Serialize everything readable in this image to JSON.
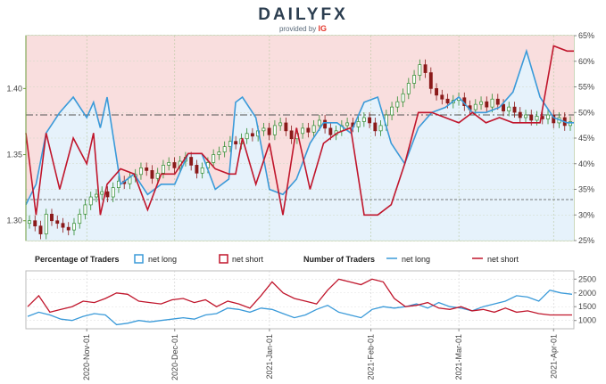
{
  "brand": {
    "name": "DAILYFX",
    "provided_by": "provided by",
    "partner": "IG"
  },
  "legend": {
    "pct_title": "Percentage of Traders",
    "num_title": "Number of Traders",
    "net_long": "net long",
    "net_short": "net short"
  },
  "colors": {
    "long": "#3a9ad9",
    "short": "#c0162c",
    "up_candle": "#2e8b2e",
    "down_candle": "#8b1a1a",
    "long_fill": "#e6f2fb",
    "short_fill": "#f9dede"
  },
  "chart_data": [
    {
      "type": "line",
      "title": "",
      "price_axis": {
        "ticks": [
          "1.30",
          "1.35",
          "1.40"
        ],
        "ylim": [
          1.285,
          1.44
        ]
      },
      "pct_axis": {
        "ticks": [
          "25%",
          "30%",
          "35%",
          "40%",
          "45%",
          "50%",
          "55%",
          "60%",
          "65%"
        ],
        "ylim": [
          25,
          65
        ]
      },
      "reference_lines": {
        "price_level": 1.38,
        "pct_level": 33
      },
      "x_ticks": [
        "2020-Nov-01",
        "2020-Dec-01",
        "2021-Jan-01",
        "2021-Feb-01",
        "2021-Mar-01",
        "2021-Apr-01"
      ],
      "series": [
        {
          "name": "net long",
          "x": [
            0,
            3,
            6,
            10,
            14,
            18,
            20,
            22,
            24,
            28,
            32,
            36,
            40,
            44,
            48,
            52,
            56,
            60,
            62,
            64,
            68,
            72,
            76,
            80,
            84,
            88,
            92,
            96,
            100,
            104,
            108,
            112,
            116,
            120,
            124,
            128,
            132,
            136,
            140,
            144,
            148,
            152,
            156,
            160,
            162
          ],
          "values": [
            32,
            36,
            46,
            50,
            53,
            49,
            52,
            47,
            53,
            36,
            38,
            34,
            36,
            36,
            42,
            42,
            35,
            37,
            52,
            53,
            49,
            35,
            34,
            37,
            44,
            48,
            48,
            46,
            52,
            53,
            44,
            40,
            47,
            50,
            51,
            53,
            50,
            50,
            51,
            54,
            62,
            53,
            49,
            48,
            48
          ]
        },
        {
          "name": "net short",
          "x": [
            0,
            3,
            6,
            10,
            14,
            18,
            20,
            22,
            24,
            28,
            32,
            36,
            40,
            44,
            48,
            52,
            56,
            60,
            62,
            64,
            68,
            72,
            76,
            80,
            84,
            88,
            92,
            96,
            100,
            104,
            108,
            112,
            116,
            120,
            124,
            128,
            132,
            136,
            140,
            144,
            148,
            152,
            156,
            160,
            162
          ],
          "values": [
            46,
            30,
            46,
            35,
            45,
            40,
            46,
            30,
            36,
            39,
            38,
            31,
            38,
            38,
            42,
            42,
            39,
            38,
            38,
            45,
            36,
            44,
            30,
            47,
            35,
            44,
            46,
            47,
            30,
            30,
            32,
            40,
            50,
            50,
            49,
            48,
            50,
            48,
            49,
            48,
            48,
            48,
            63,
            62,
            62
          ]
        }
      ],
      "candles": [
        1.3,
        1.296,
        1.29,
        1.305,
        1.3,
        1.298,
        1.295,
        1.293,
        1.298,
        1.305,
        1.312,
        1.318,
        1.32,
        1.322,
        1.318,
        1.325,
        1.33,
        1.328,
        1.333,
        1.335,
        1.34,
        1.338,
        1.332,
        1.336,
        1.342,
        1.344,
        1.34,
        1.345,
        1.348,
        1.342,
        1.336,
        1.34,
        1.344,
        1.35,
        1.352,
        1.356,
        1.36,
        1.358,
        1.362,
        1.366,
        1.364,
        1.368,
        1.37,
        1.365,
        1.372,
        1.374,
        1.368,
        1.362,
        1.366,
        1.37,
        1.367,
        1.372,
        1.376,
        1.37,
        1.365,
        1.368,
        1.372,
        1.374,
        1.371,
        1.375,
        1.378,
        1.374,
        1.368,
        1.372,
        1.38,
        1.386,
        1.39,
        1.396,
        1.404,
        1.41,
        1.418,
        1.412,
        1.4,
        1.395,
        1.392,
        1.389,
        1.391,
        1.393,
        1.387,
        1.384,
        1.388,
        1.39,
        1.386,
        1.392,
        1.388,
        1.383,
        1.386,
        1.382,
        1.378,
        1.38,
        1.376,
        1.379,
        1.377,
        1.38,
        1.374,
        1.378,
        1.372,
        1.375
      ]
    },
    {
      "type": "line",
      "title": "Number of Traders",
      "y_axis": {
        "ticks": [
          "1000",
          "1500",
          "2000",
          "2500"
        ],
        "ylim": [
          700,
          2800
        ]
      },
      "series": [
        {
          "name": "net long",
          "values": [
            1150,
            1300,
            1200,
            1050,
            1000,
            1150,
            1250,
            1200,
            850,
            900,
            1000,
            950,
            1000,
            1050,
            1100,
            1050,
            1200,
            1250,
            1450,
            1400,
            1300,
            1450,
            1400,
            1250,
            1100,
            1200,
            1400,
            1550,
            1300,
            1200,
            1100,
            1400,
            1500,
            1450,
            1500,
            1600,
            1450,
            1650,
            1500,
            1450,
            1350,
            1500,
            1600,
            1700,
            1900,
            1850,
            1700,
            2100,
            2000,
            1950
          ]
        },
        {
          "name": "net short",
          "values": [
            1500,
            1900,
            1300,
            1400,
            1500,
            1700,
            1650,
            1800,
            2000,
            1950,
            1700,
            1650,
            1600,
            1750,
            1800,
            1650,
            1750,
            1500,
            1700,
            1600,
            1450,
            1900,
            2400,
            2000,
            1800,
            1700,
            1600,
            2100,
            2500,
            2400,
            2300,
            2500,
            2400,
            1800,
            1500,
            1550,
            1650,
            1450,
            1400,
            1500,
            1350,
            1400,
            1300,
            1450,
            1300,
            1350,
            1250,
            1200,
            1200,
            1200
          ]
        }
      ]
    }
  ]
}
